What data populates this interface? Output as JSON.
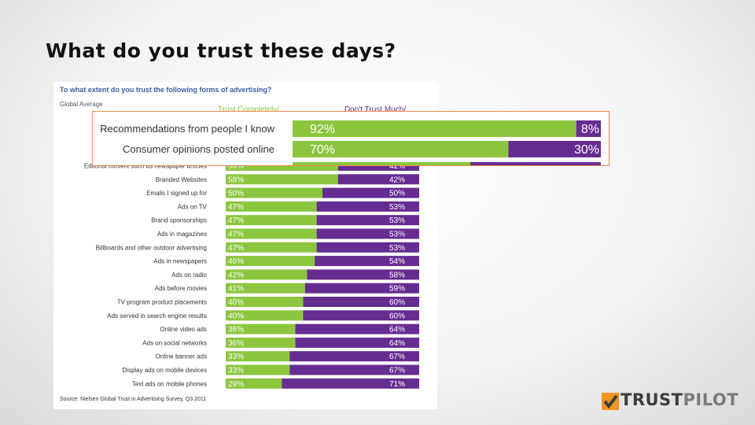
{
  "slide": {
    "title": "What do you trust these days?"
  },
  "panel": {
    "question": "To what extent do you trust the following forms of advertising?",
    "scope": "Global Average",
    "header_left": "Trust Completely/",
    "header_right": "Don't Trust Much/",
    "source": "Source: Nielsen Global Trust in Advertising Survey, Q3 2011"
  },
  "colors": {
    "trust": "#8cc63f",
    "distrust": "#662d91",
    "inset_border": "#f08a4b"
  },
  "chart_data": [
    {
      "type": "bar",
      "stacked": true,
      "orientation": "horizontal",
      "categories": [
        "Editorial content such as newspaper articles",
        "Branded Websites",
        "Emails I signed up for",
        "Ads on TV",
        "Brand sponsorships",
        "Ads in magazines",
        "Billboards and other outdoor advertising",
        "Ads in newspapers",
        "Ads on radio",
        "Ads before movies",
        "TV program product placements",
        "Ads served in search engine results",
        "Online video ads",
        "Ads on social networks",
        "Online banner ads",
        "Display ads on mobile devices",
        "Text ads on mobile phones"
      ],
      "series": [
        {
          "name": "Trust Completely/",
          "values": [
            58,
            58,
            50,
            47,
            47,
            47,
            47,
            46,
            42,
            41,
            40,
            40,
            36,
            36,
            33,
            33,
            29
          ]
        },
        {
          "name": "Don't Trust Much/",
          "values": [
            42,
            42,
            50,
            53,
            53,
            53,
            53,
            54,
            58,
            59,
            60,
            60,
            64,
            64,
            67,
            67,
            71
          ]
        }
      ],
      "xlim": [
        0,
        100
      ],
      "unit": "%"
    },
    {
      "type": "bar",
      "stacked": true,
      "orientation": "horizontal",
      "categories": [
        "Recommendations from people I know",
        "Consumer opinions posted online"
      ],
      "series": [
        {
          "name": "Trust Completely/",
          "values": [
            92,
            70
          ]
        },
        {
          "name": "Don't Trust Much/",
          "values": [
            8,
            30
          ]
        }
      ],
      "xlim": [
        0,
        100
      ],
      "unit": "%"
    }
  ],
  "logo": {
    "part1": "TRUST",
    "part2": "PILOT"
  }
}
